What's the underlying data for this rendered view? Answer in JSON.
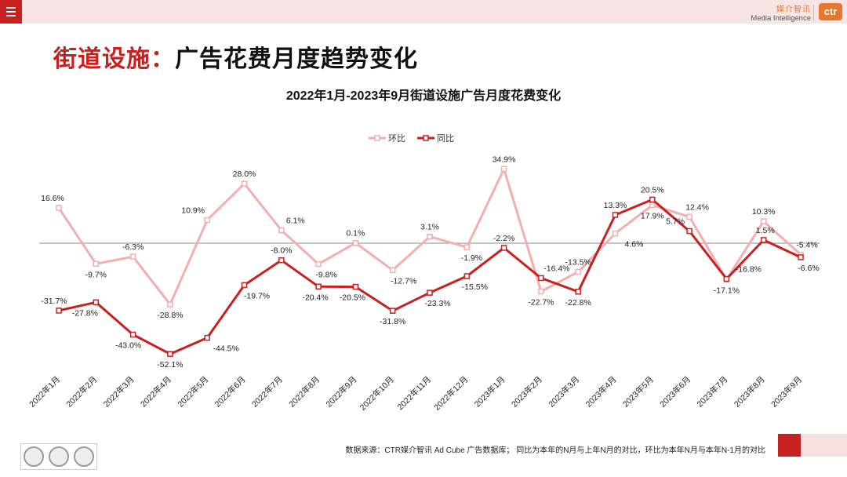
{
  "header": {
    "menu_icon": "hamburger-menu-icon",
    "brand_cn": "媒介智讯",
    "brand_en": "Media Intelligence",
    "logo_text": "ctr"
  },
  "page": {
    "title_part1": "街道设施：",
    "title_part2": "广告花费月度趋势变化"
  },
  "footer": {
    "source": "数据来源：CTR媒介智讯 Ad Cube 广告数据库； 同比为本年的N月与上年N月的对比，环比为本年N月与本年N-1月的对比"
  },
  "colors": {
    "accent": "#c8201f",
    "mom_line": "#f4aeae",
    "yoy_line": "#c8201f"
  },
  "chart_data": {
    "type": "line",
    "title": "2022年1月-2023年9月街道设施广告月度花费变化",
    "xlabel": "",
    "ylabel": "",
    "ylim": [
      -60,
      40
    ],
    "legend_position": "top-center",
    "categories": [
      "2022年1月",
      "2022年2月",
      "2022年3月",
      "2022年4月",
      "2022年5月",
      "2022年6月",
      "2022年7月",
      "2022年8月",
      "2022年9月",
      "2022年10月",
      "2022年11月",
      "2022年12月",
      "2023年1月",
      "2023年2月",
      "2023年3月",
      "2023年4月",
      "2023年5月",
      "2023年6月",
      "2023年7月",
      "2023年8月",
      "2023年9月"
    ],
    "series": [
      {
        "name": "环比",
        "values": [
          16.6,
          -9.7,
          -6.3,
          -28.8,
          10.9,
          28.0,
          6.1,
          -9.8,
          0.1,
          -12.7,
          3.1,
          -1.9,
          34.9,
          -22.7,
          -13.5,
          4.6,
          17.9,
          12.4,
          -17.1,
          10.3,
          -5.4
        ],
        "labels": [
          "16.6%",
          "-9.7%",
          "-6.3%",
          "-28.8%",
          "10.9%",
          "28.0%",
          "6.1%",
          "-9.8%",
          "0.1%",
          "-12.7%",
          "3.1%",
          "-1.9%",
          "34.9%",
          "-22.7%",
          "-13.5%",
          "4.6%",
          "17.9%",
          "12.4%",
          "-17.1%",
          "10.3%",
          "-5.4%"
        ]
      },
      {
        "name": "同比",
        "values": [
          -31.7,
          -27.8,
          -43.0,
          -52.1,
          -44.5,
          -19.7,
          -8.0,
          -20.4,
          -20.5,
          -31.8,
          -23.3,
          -15.5,
          -2.2,
          -16.4,
          -22.8,
          13.3,
          20.5,
          5.7,
          -16.8,
          1.5,
          -6.6
        ],
        "labels": [
          "-31.7%",
          "-27.8%",
          "-43.0%",
          "-52.1%",
          "-44.5%",
          "-19.7%",
          "-8.0%",
          "-20.4%",
          "-20.5%",
          "-31.8%",
          "-23.3%",
          "-15.5%",
          "-2.2%",
          "-16.4%",
          "-22.8%",
          "13.3%",
          "20.5%",
          "5.7%",
          "-16.8%",
          "1.5%",
          "-6.6%"
        ]
      }
    ]
  }
}
